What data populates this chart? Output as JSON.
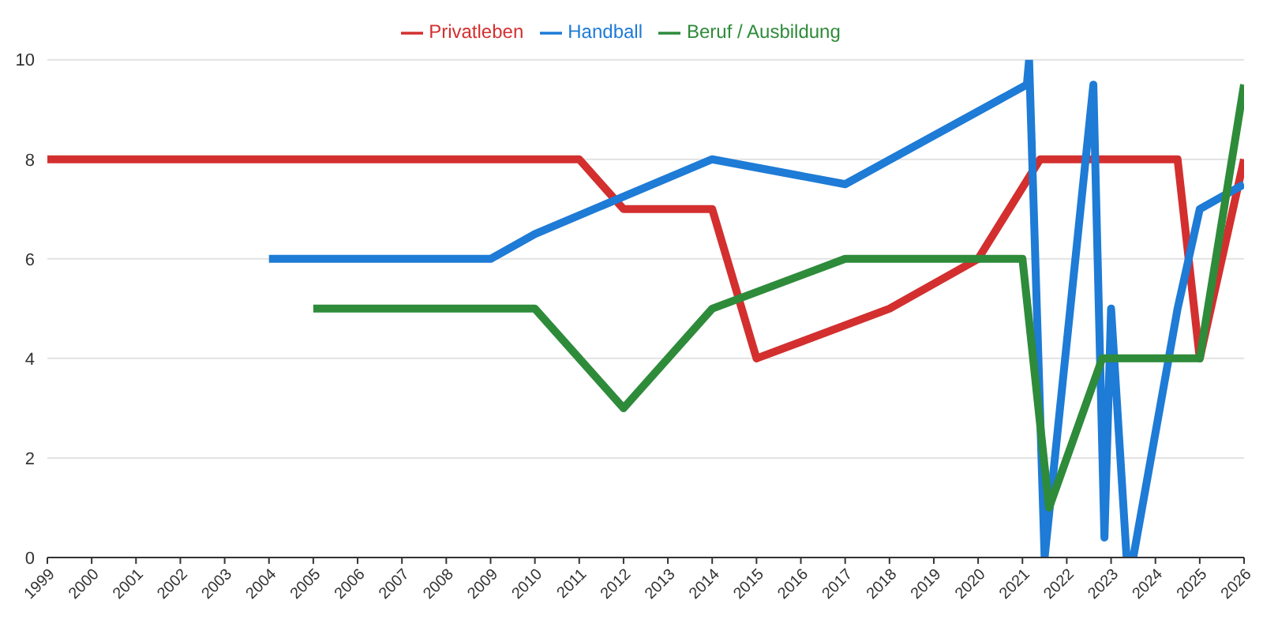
{
  "chart_data": {
    "type": "line",
    "xlim": [
      1999,
      2026
    ],
    "xticks": [
      1999,
      2000,
      2001,
      2002,
      2003,
      2004,
      2005,
      2006,
      2007,
      2008,
      2009,
      2010,
      2011,
      2012,
      2013,
      2014,
      2015,
      2016,
      2017,
      2018,
      2019,
      2020,
      2021,
      2022,
      2023,
      2024,
      2025,
      2026
    ],
    "ylim": [
      0,
      10
    ],
    "yticks": [
      0,
      2,
      4,
      6,
      8,
      10
    ],
    "grid": "y",
    "legend": "top",
    "marker": "none",
    "line_style": "solid",
    "series": [
      {
        "name": "Privatleben",
        "color": "#d32f2f",
        "x": [
          1999,
          2011,
          2012,
          2014,
          2015,
          2018,
          2020,
          2021.4,
          2024.5,
          2025,
          2026
        ],
        "values": [
          8,
          8,
          7,
          7,
          4,
          5,
          6,
          8,
          8,
          4,
          8
        ]
      },
      {
        "name": "Handball",
        "color": "#1e7bd6",
        "x": [
          2004,
          2009,
          2010,
          2014,
          2017,
          2021.1,
          2021.15,
          2021.5,
          2022.6,
          2022.85,
          2023,
          2023.35,
          2023.5,
          2024.5,
          2025,
          2026
        ],
        "values": [
          6,
          6,
          6.5,
          8,
          7.5,
          9.5,
          10,
          0,
          9.5,
          0.4,
          5,
          0,
          0,
          5,
          7,
          7.5
        ]
      },
      {
        "name": "Beruf / Ausbildung",
        "color": "#2e8b3a",
        "x": [
          2005,
          2010,
          2012,
          2014,
          2017,
          2021,
          2021.6,
          2022.8,
          2025,
          2026
        ],
        "values": [
          5,
          5,
          3,
          5,
          6,
          6,
          1,
          4,
          4,
          9.5
        ]
      }
    ]
  }
}
